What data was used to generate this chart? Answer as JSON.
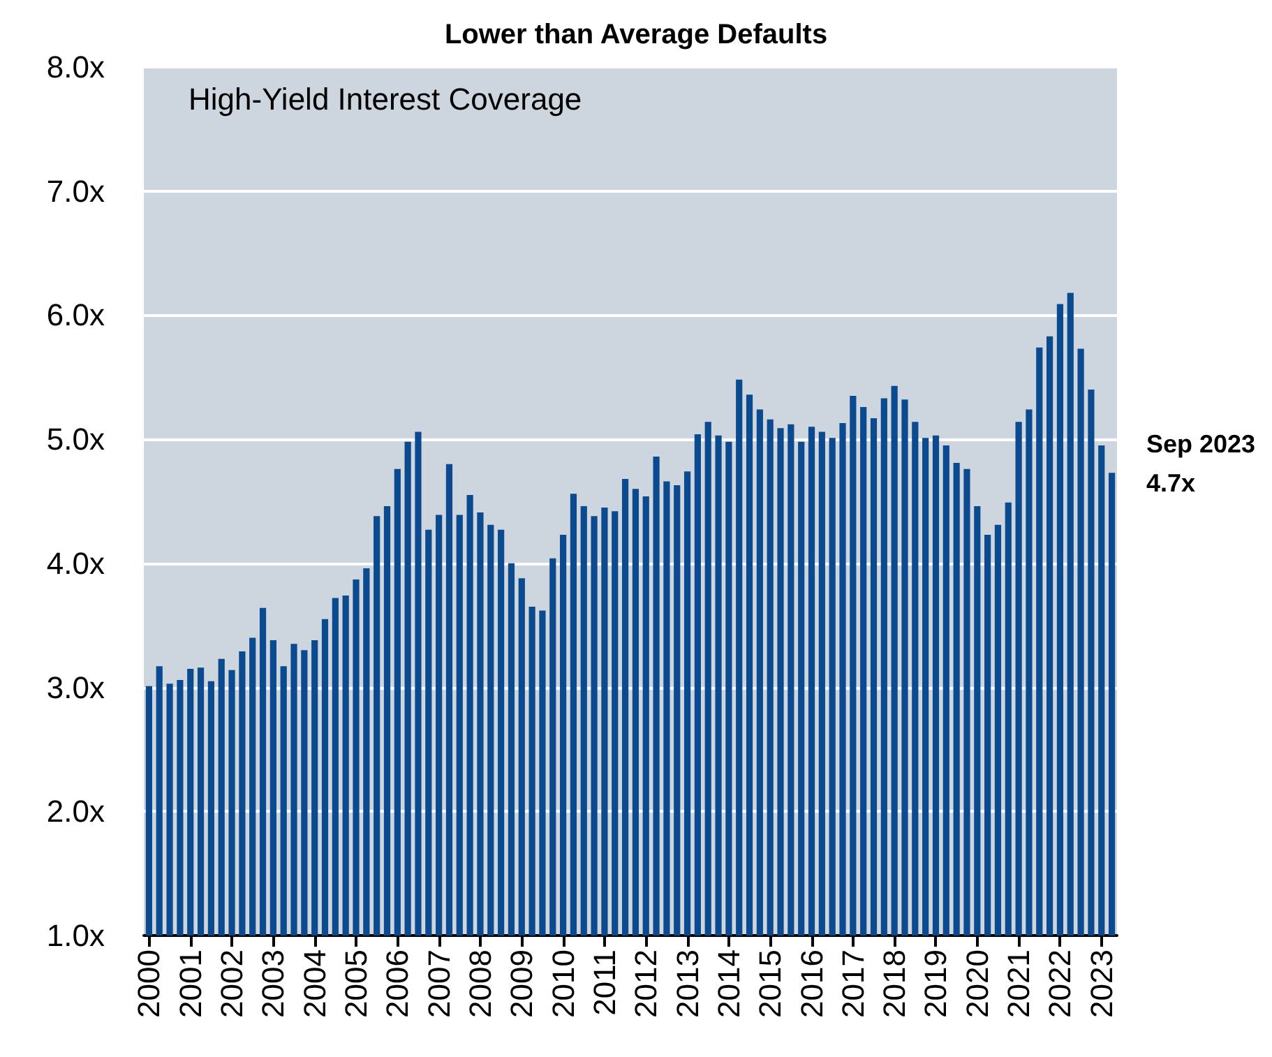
{
  "chart_data": {
    "type": "bar",
    "title": "Lower than Average Defaults",
    "subtitle": "High-Yield Interest Coverage",
    "categories": [
      "2000",
      null,
      null,
      null,
      "2001",
      null,
      null,
      null,
      "2002",
      null,
      null,
      null,
      "2003",
      null,
      null,
      null,
      "2004",
      null,
      null,
      null,
      "2005",
      null,
      null,
      null,
      "2006",
      null,
      null,
      null,
      "2007",
      null,
      null,
      null,
      "2008",
      null,
      null,
      null,
      "2009",
      null,
      null,
      null,
      "2010",
      null,
      null,
      null,
      "2011",
      null,
      null,
      null,
      "2012",
      null,
      null,
      null,
      "2013",
      null,
      null,
      null,
      "2014",
      null,
      null,
      null,
      "2015",
      null,
      null,
      null,
      "2016",
      null,
      null,
      null,
      "2017",
      null,
      null,
      null,
      "2018",
      null,
      null,
      null,
      "2019",
      null,
      null,
      null,
      "2020",
      null,
      null,
      null,
      "2021",
      null,
      null,
      null,
      "2022",
      null,
      null,
      null,
      "2023",
      null
    ],
    "values": [
      3.01,
      3.17,
      3.03,
      3.06,
      3.15,
      3.16,
      3.05,
      3.23,
      3.14,
      3.29,
      3.4,
      3.64,
      3.38,
      3.17,
      3.35,
      3.3,
      3.38,
      3.55,
      3.72,
      3.74,
      3.87,
      3.96,
      4.38,
      4.46,
      4.76,
      4.98,
      5.06,
      4.27,
      4.39,
      4.8,
      4.39,
      4.55,
      4.41,
      4.31,
      4.27,
      4.0,
      3.88,
      3.65,
      3.62,
      4.04,
      4.23,
      4.56,
      4.46,
      4.38,
      4.45,
      4.42,
      4.68,
      4.6,
      4.54,
      4.86,
      4.66,
      4.63,
      4.74,
      5.04,
      5.14,
      5.03,
      4.98,
      5.48,
      5.36,
      5.24,
      5.16,
      5.09,
      5.12,
      4.98,
      5.1,
      5.06,
      5.01,
      5.13,
      5.35,
      5.26,
      5.17,
      5.33,
      5.43,
      5.32,
      5.14,
      5.01,
      5.03,
      4.95,
      4.81,
      4.76,
      4.46,
      4.23,
      4.31,
      4.49,
      5.14,
      5.24,
      5.74,
      5.83,
      6.09,
      6.18,
      5.73,
      5.4,
      4.95,
      4.73
    ],
    "color": "#0b4a8f",
    "ylim": [
      1,
      8
    ],
    "yticks": [
      {
        "value": 1,
        "label": "1.0x"
      },
      {
        "value": 2,
        "label": "2.0x"
      },
      {
        "value": 3,
        "label": "3.0x"
      },
      {
        "value": 4,
        "label": "4.0x"
      },
      {
        "value": 5,
        "label": "5.0x"
      },
      {
        "value": 6,
        "label": "6.0x"
      },
      {
        "value": 7,
        "label": "7.0x"
      },
      {
        "value": 8,
        "label": "8.0x"
      }
    ],
    "grid": "y",
    "annotations": [
      "Sep 2023\n4.7x"
    ]
  }
}
